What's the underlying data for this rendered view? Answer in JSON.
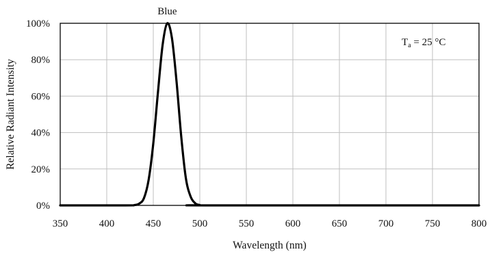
{
  "chart_data": {
    "type": "line",
    "title": "Blue",
    "xlabel": "Wavelength (nm)",
    "ylabel": "Relative Radiant Intensity",
    "xlim": [
      350,
      800
    ],
    "ylim": [
      0,
      100
    ],
    "x_ticks": [
      350,
      400,
      450,
      500,
      550,
      600,
      650,
      700,
      750,
      800
    ],
    "y_ticks": [
      0,
      20,
      40,
      60,
      80,
      100
    ],
    "y_tick_labels": [
      "0%",
      "20%",
      "40%",
      "60%",
      "80%",
      "100%"
    ],
    "grid": true,
    "annotation": {
      "main": "T",
      "sub": "a",
      "rest": " = 25 °C",
      "placement": "top-right"
    },
    "colors": {
      "line": "#000000",
      "grid": "#bfbfbf",
      "frame": "#000000"
    },
    "series": [
      {
        "color": "#000000",
        "points": [
          [
            350,
            0
          ],
          [
            420,
            0
          ],
          [
            430,
            0.2
          ],
          [
            435,
            1
          ],
          [
            440,
            4
          ],
          [
            445,
            14
          ],
          [
            450,
            34
          ],
          [
            455,
            62
          ],
          [
            460,
            88
          ],
          [
            465,
            100
          ],
          [
            470,
            92
          ],
          [
            475,
            68
          ],
          [
            480,
            38
          ],
          [
            485,
            15
          ],
          [
            490,
            5
          ],
          [
            495,
            1.2
          ],
          [
            500,
            0.2
          ],
          [
            510,
            0
          ],
          [
            800,
            0
          ]
        ]
      }
    ]
  }
}
